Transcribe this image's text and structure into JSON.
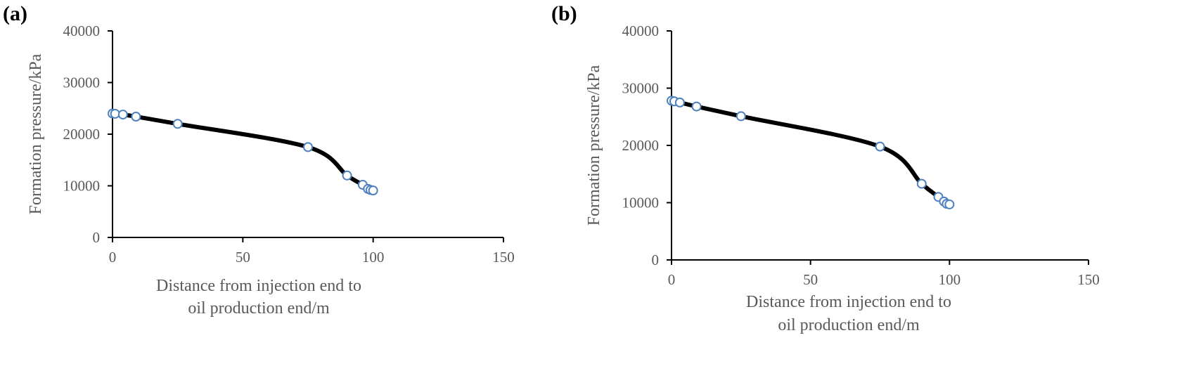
{
  "chart_data": [
    {
      "panel": "(a)",
      "type": "line",
      "xlabel_lines": [
        "Distance  from injection end to",
        "oil production end/m"
      ],
      "ylabel": "Formation pressure/kPa",
      "xlim": [
        0,
        150
      ],
      "ylim": [
        0,
        40000
      ],
      "xticks": [
        0,
        50,
        100,
        150
      ],
      "yticks": [
        0,
        10000,
        20000,
        30000,
        40000
      ],
      "grid": false,
      "series": [
        {
          "marker_color": "#4f81bd",
          "line_color": "#000000",
          "x": [
            0,
            1,
            4,
            9,
            25,
            75,
            90,
            96,
            98,
            99,
            100
          ],
          "y": [
            24000,
            23950,
            23800,
            23400,
            22000,
            17500,
            12000,
            10200,
            9400,
            9200,
            9100
          ]
        }
      ]
    },
    {
      "panel": "(b)",
      "type": "line",
      "xlabel_lines": [
        "Distance  from injection end to",
        "oil production end/m"
      ],
      "ylabel": "Formation pressure/kPa",
      "xlim": [
        0,
        150
      ],
      "ylim": [
        0,
        40000
      ],
      "xticks": [
        0,
        50,
        100,
        150
      ],
      "yticks": [
        0,
        10000,
        20000,
        30000,
        40000
      ],
      "grid": false,
      "series": [
        {
          "marker_color": "#4f81bd",
          "line_color": "#000000",
          "x": [
            0,
            1,
            3,
            9,
            25,
            75,
            90,
            96,
            98,
            99,
            100
          ],
          "y": [
            27800,
            27700,
            27500,
            26800,
            25100,
            19800,
            13300,
            11000,
            10200,
            9800,
            9700
          ]
        }
      ]
    }
  ]
}
